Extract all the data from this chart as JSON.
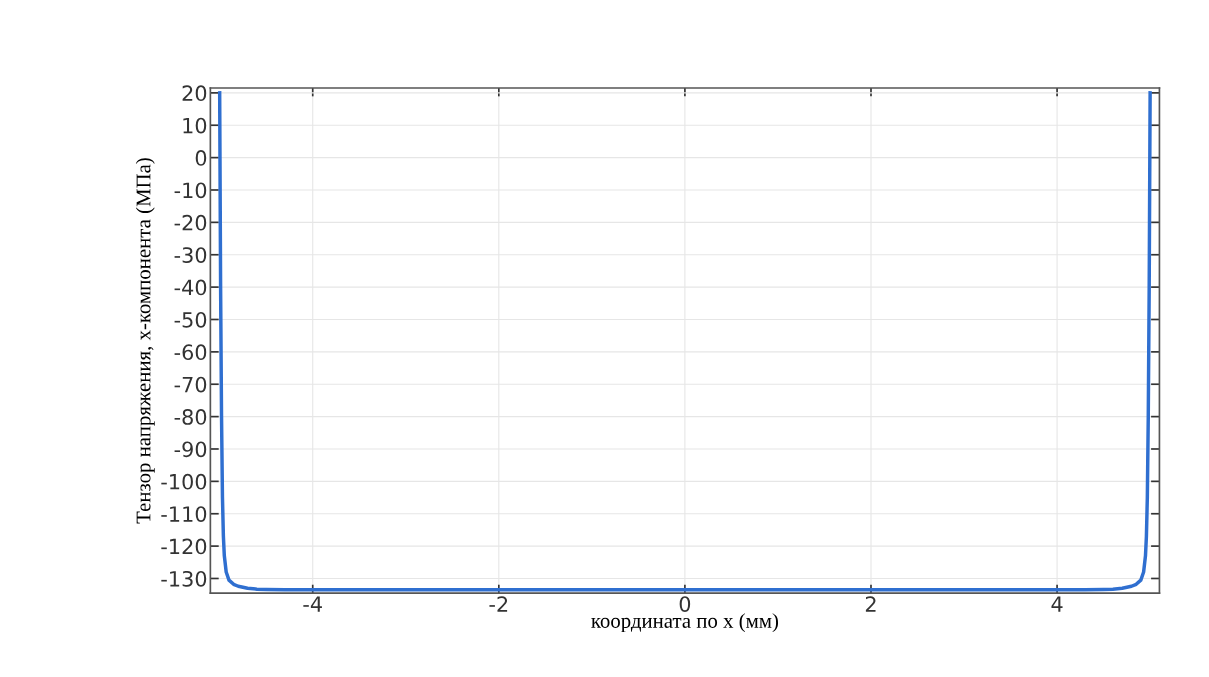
{
  "chart_data": {
    "type": "line",
    "xlabel": "координата по x (мм)",
    "ylabel": "Тензор напряжения, x-компонента (МПа)",
    "xlim": [
      -5.1,
      5.1
    ],
    "xticks": [
      -4,
      -2,
      0,
      2,
      4
    ],
    "ylim": [
      -134.5,
      21.5
    ],
    "yticks": [
      20,
      10,
      0,
      -10,
      -20,
      -30,
      -40,
      -50,
      -60,
      -70,
      -80,
      -90,
      -100,
      -110,
      -120,
      -130
    ],
    "grid": true,
    "marker": "none",
    "line_style": "solid",
    "series": [
      {
        "color": "#2f6fd0",
        "x": [
          -5.0,
          -4.99,
          -4.98,
          -4.97,
          -4.96,
          -4.95,
          -4.93,
          -4.9,
          -4.85,
          -4.8,
          -4.7,
          -4.6,
          -4.5,
          -4.3,
          -4.0,
          -3.0,
          -2.0,
          -1.0,
          0.0,
          1.0,
          2.0,
          3.0,
          4.0,
          4.3,
          4.5,
          4.6,
          4.7,
          4.8,
          4.85,
          4.9,
          4.93,
          4.95,
          4.96,
          4.97,
          4.98,
          4.99,
          5.0
        ],
        "values": [
          20,
          -40,
          -80,
          -105,
          -117,
          -123,
          -128,
          -130.5,
          -131.8,
          -132.4,
          -133,
          -133.3,
          -133.4,
          -133.5,
          -133.5,
          -133.5,
          -133.5,
          -133.5,
          -133.5,
          -133.5,
          -133.5,
          -133.5,
          -133.5,
          -133.5,
          -133.4,
          -133.3,
          -133,
          -132.4,
          -131.8,
          -130.5,
          -128,
          -123,
          -117,
          -105,
          -80,
          -40,
          20
        ]
      }
    ]
  }
}
